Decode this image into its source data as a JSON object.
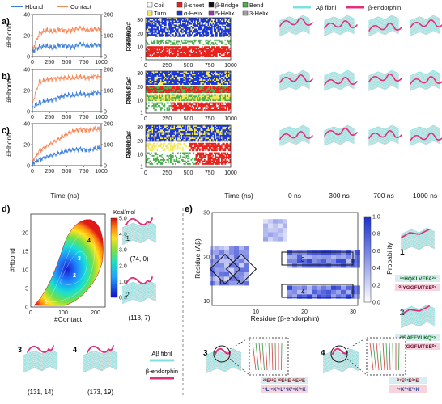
{
  "panel_labels": {
    "a": "a)",
    "b": "b)",
    "c": "c)",
    "d": "d)",
    "e": "e)"
  },
  "legend_top": {
    "hbond": "Hbond",
    "contact": "Contact",
    "ss": [
      "Coil",
      "β-sheet",
      "β-Bridge",
      "Bend",
      "Turn",
      "α-Helix",
      "5-Helix",
      "3-Helix"
    ],
    "fibril": "Aβ fibril",
    "peptide": "β-endorphin"
  },
  "colors": {
    "hbond": "#3d7fd9",
    "contact": "#f4895a",
    "fibril": "#7ee0e0",
    "peptide": "#e0307a",
    "coil": "#ffffff",
    "sheet": "#e8221c",
    "bridge": "#111111",
    "bend": "#4caf50",
    "turn": "#f2e85a",
    "ahelix": "#1a36d6",
    "helix5": "#8b3fa8",
    "helix3": "#9e9e9e"
  },
  "ts_axes": {
    "ylabel_left": "#Hbond",
    "ylabel_right": "#Contact",
    "xlabel": "Time (ns)",
    "left_ticks": [
      "0",
      "20",
      "40"
    ],
    "right_ticks": [
      "0",
      "100",
      "200"
    ],
    "x_ticks": [
      "0",
      "250",
      "500",
      "750",
      "1000"
    ]
  },
  "ss_axes": {
    "ylabel": "Residue",
    "y_ticks": [
      "1",
      "10",
      "20",
      "30"
    ],
    "x_ticks": [
      "0",
      "250",
      "500",
      "750",
      "1000"
    ],
    "xlabel": "Time (ns)"
  },
  "snapshot_times": [
    "0 ns",
    "300 ns",
    "700 ns",
    "1000 ns"
  ],
  "chart_data": [
    {
      "type": "line",
      "panel": "a",
      "x": [
        0,
        100,
        200,
        300,
        400,
        500,
        600,
        700,
        800,
        900,
        1000
      ],
      "series": [
        {
          "name": "Hbond",
          "values": [
            5,
            9,
            10,
            8,
            11,
            10,
            9,
            12,
            10,
            11,
            10
          ]
        },
        {
          "name": "Contact",
          "values": [
            30,
            110,
            125,
            118,
            130,
            122,
            128,
            135,
            125,
            130,
            127
          ]
        }
      ],
      "xlabel": "Time (ns)",
      "ylabel": "#Hbond",
      "y2label": "#Contact",
      "ylim": [
        0,
        40
      ],
      "y2lim": [
        0,
        200
      ]
    },
    {
      "type": "line",
      "panel": "b",
      "x": [
        0,
        100,
        200,
        300,
        400,
        500,
        600,
        700,
        800,
        900,
        1000
      ],
      "series": [
        {
          "name": "Hbond",
          "values": [
            4,
            8,
            10,
            11,
            14,
            16,
            15,
            17,
            16,
            18,
            17
          ]
        },
        {
          "name": "Contact",
          "values": [
            40,
            140,
            150,
            155,
            160,
            162,
            158,
            165,
            160,
            168,
            162
          ]
        }
      ],
      "xlabel": "Time (ns)",
      "ylabel": "#Hbond",
      "y2label": "#Contact",
      "ylim": [
        0,
        40
      ],
      "y2lim": [
        0,
        200
      ]
    },
    {
      "type": "line",
      "panel": "c",
      "x": [
        0,
        100,
        200,
        300,
        400,
        500,
        600,
        700,
        800,
        900,
        1000
      ],
      "series": [
        {
          "name": "Hbond",
          "values": [
            2,
            6,
            8,
            10,
            12,
            14,
            15,
            16,
            15,
            16,
            17
          ]
        },
        {
          "name": "Contact",
          "values": [
            20,
            70,
            90,
            110,
            130,
            150,
            165,
            172,
            170,
            175,
            173
          ]
        }
      ],
      "xlabel": "Time (ns)",
      "ylabel": "#Hbond",
      "y2label": "#Contact",
      "ylim": [
        0,
        40
      ],
      "y2lim": [
        0,
        200
      ]
    },
    {
      "type": "heatmap",
      "panel": "d",
      "xlabel": "#Contact",
      "ylabel": "#Hbond",
      "xlim": [
        0,
        230
      ],
      "ylim": [
        0,
        25
      ],
      "x_ticks": [
        0,
        100,
        200
      ],
      "y_ticks": [
        0,
        5,
        10,
        15,
        20
      ],
      "colorbar_label": "Kcal/mol",
      "colorbar_ticks": [
        0.0,
        1.0,
        2.0,
        3.0,
        4.0,
        5.0
      ],
      "minima": [
        {
          "label": "1",
          "x": 74,
          "y": 0
        },
        {
          "label": "2",
          "x": 118,
          "y": 7
        },
        {
          "label": "3",
          "x": 131,
          "y": 14
        },
        {
          "label": "4",
          "x": 173,
          "y": 19
        }
      ]
    },
    {
      "type": "heatmap",
      "panel": "e",
      "xlabel": "Residue (β-endorphin)",
      "ylabel": "Residue (Aβ)",
      "xlim": [
        1,
        31
      ],
      "ylim": [
        9,
        30
      ],
      "x_ticks": [
        10,
        20,
        30
      ],
      "y_ticks": [
        10,
        20,
        30
      ],
      "colorbar_label": "Probability",
      "colorbar_ticks": [
        0.0,
        0.2,
        0.4,
        0.6,
        0.8,
        1.0
      ],
      "boxes": [
        {
          "label": "1"
        },
        {
          "label": "2"
        },
        {
          "label": "3"
        },
        {
          "label": "4"
        }
      ]
    }
  ],
  "minima_labels": [
    {
      "num": "1",
      "coord": "(74, 0)"
    },
    {
      "num": "2",
      "coord": "(118, 7)"
    },
    {
      "num": "3",
      "coord": "(131, 14)"
    },
    {
      "num": "4",
      "coord": "(173, 19)"
    }
  ],
  "d_legend": {
    "fibril": "Aβ fibril",
    "peptide": "β-endorphin"
  },
  "e_sequences": {
    "s1_top": "¹⁴HQKLVFFA²¹",
    "s1_bot": "⁰¹YGGFMTSE⁰⁸",
    "s2_top": "²²EAFFVLKQ¹⁵",
    "s2_bot": "⁰¹YGGFMTSE⁰⁸",
    "s3_top": "²⁰E²²E ²⁰E²²E ²²E²²E",
    "s3_bot": "¹⁷L¹⁹K²⁵L²⁴K²⁸K²⁹K",
    "s4_top": "⁰⁷E⁰⁷E⁰⁷E",
    "s4_bot": "¹⁹K²⁴K²⁸K"
  },
  "e_labels": {
    "n1": "1",
    "n2": "2",
    "n3": "3",
    "n4": "4"
  }
}
